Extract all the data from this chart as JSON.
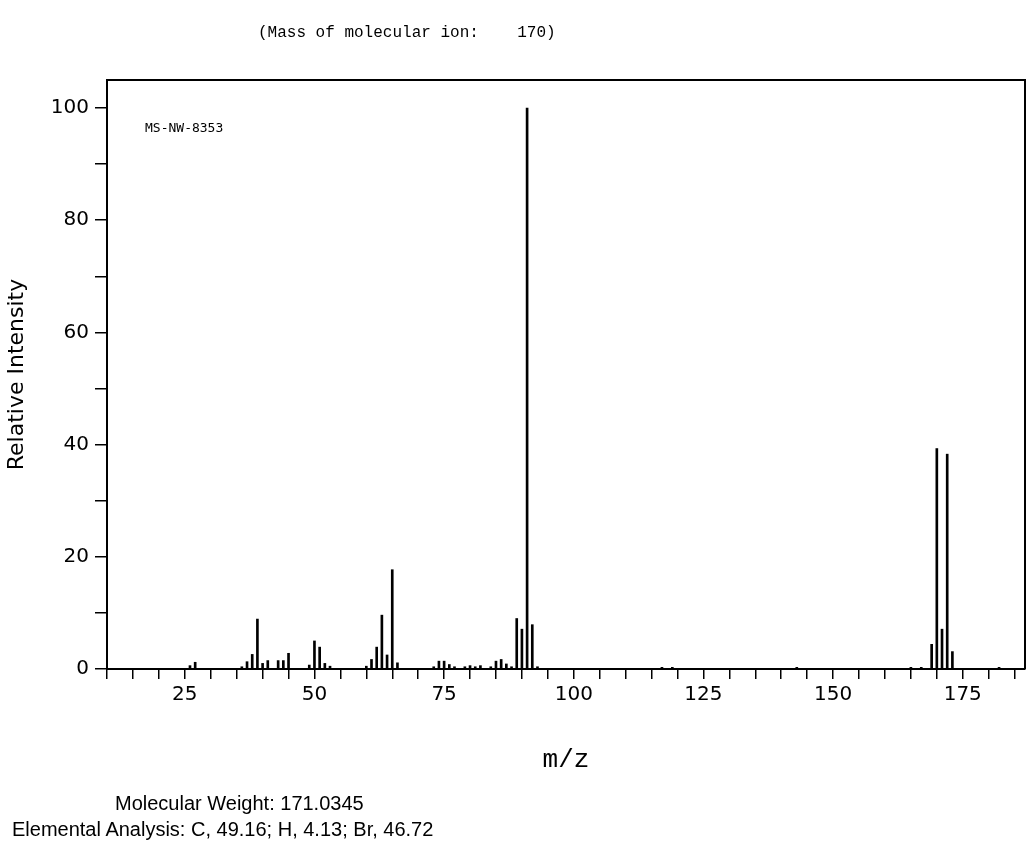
{
  "chart_data": {
    "type": "bar",
    "xlabel": "m/z",
    "ylabel": "Relative Intensity",
    "annotations": [
      "(Mass of molecular ion:    170)",
      "MS-NW-8353",
      "Molecular Weight: 171.0345",
      "Elemental Analysis: C, 49.16; H, 4.13; Br, 46.72"
    ],
    "x": [
      26,
      27,
      36,
      37,
      38,
      39,
      40,
      41,
      43,
      44,
      45,
      49,
      50,
      51,
      52,
      53,
      60,
      61,
      62,
      63,
      64,
      65,
      66,
      73,
      74,
      75,
      76,
      77,
      79,
      80,
      81,
      82,
      84,
      85,
      86,
      87,
      88,
      89,
      90,
      91,
      92,
      93,
      117,
      119,
      143,
      165,
      167,
      169,
      170,
      171,
      172,
      173,
      182
    ],
    "values": [
      0.6,
      1.2,
      0.4,
      1.3,
      2.6,
      8.9,
      1.0,
      1.5,
      1.5,
      1.5,
      2.8,
      0.7,
      5.0,
      3.9,
      1.0,
      0.5,
      0.5,
      1.7,
      3.9,
      9.6,
      2.5,
      17.7,
      1.1,
      0.4,
      1.4,
      1.4,
      0.8,
      0.4,
      0.4,
      0.6,
      0.4,
      0.6,
      0.4,
      1.4,
      1.7,
      0.9,
      0.4,
      9.0,
      7.1,
      100,
      7.9,
      0.4,
      0.3,
      0.3,
      0.3,
      0.3,
      0.3,
      4.4,
      39.3,
      7.1,
      38.3,
      3.1,
      0.3
    ],
    "color": "#000000",
    "xlim": [
      10,
      187
    ],
    "xticks": [
      {
        "value": 10,
        "label": null
      },
      {
        "value": 15,
        "label": null
      },
      {
        "value": 20,
        "label": null
      },
      25,
      {
        "value": 30,
        "label": null
      },
      {
        "value": 35,
        "label": null
      },
      {
        "value": 40,
        "label": null
      },
      {
        "value": 45,
        "label": null
      },
      50,
      {
        "value": 55,
        "label": null
      },
      {
        "value": 60,
        "label": null
      },
      {
        "value": 65,
        "label": null
      },
      {
        "value": 70,
        "label": null
      },
      75,
      {
        "value": 80,
        "label": null
      },
      {
        "value": 85,
        "label": null
      },
      {
        "value": 90,
        "label": null
      },
      {
        "value": 95,
        "label": null
      },
      100,
      {
        "value": 105,
        "label": null
      },
      {
        "value": 110,
        "label": null
      },
      {
        "value": 115,
        "label": null
      },
      {
        "value": 120,
        "label": null
      },
      125,
      {
        "value": 130,
        "label": null
      },
      {
        "value": 135,
        "label": null
      },
      {
        "value": 140,
        "label": null
      },
      {
        "value": 145,
        "label": null
      },
      150,
      {
        "value": 155,
        "label": null
      },
      {
        "value": 160,
        "label": null
      },
      {
        "value": 165,
        "label": null
      },
      {
        "value": 170,
        "label": null
      },
      175,
      {
        "value": 180,
        "label": null
      },
      {
        "value": 185,
        "label": null
      }
    ],
    "ylim": [
      0,
      105
    ],
    "yticks": [
      0,
      {
        "value": 10,
        "label": null
      },
      20,
      {
        "value": 30,
        "label": null
      },
      40,
      {
        "value": 50,
        "label": null
      },
      60,
      {
        "value": 70,
        "label": null
      },
      80,
      {
        "value": 90,
        "label": null
      },
      100
    ],
    "grid": false,
    "legend": false
  }
}
